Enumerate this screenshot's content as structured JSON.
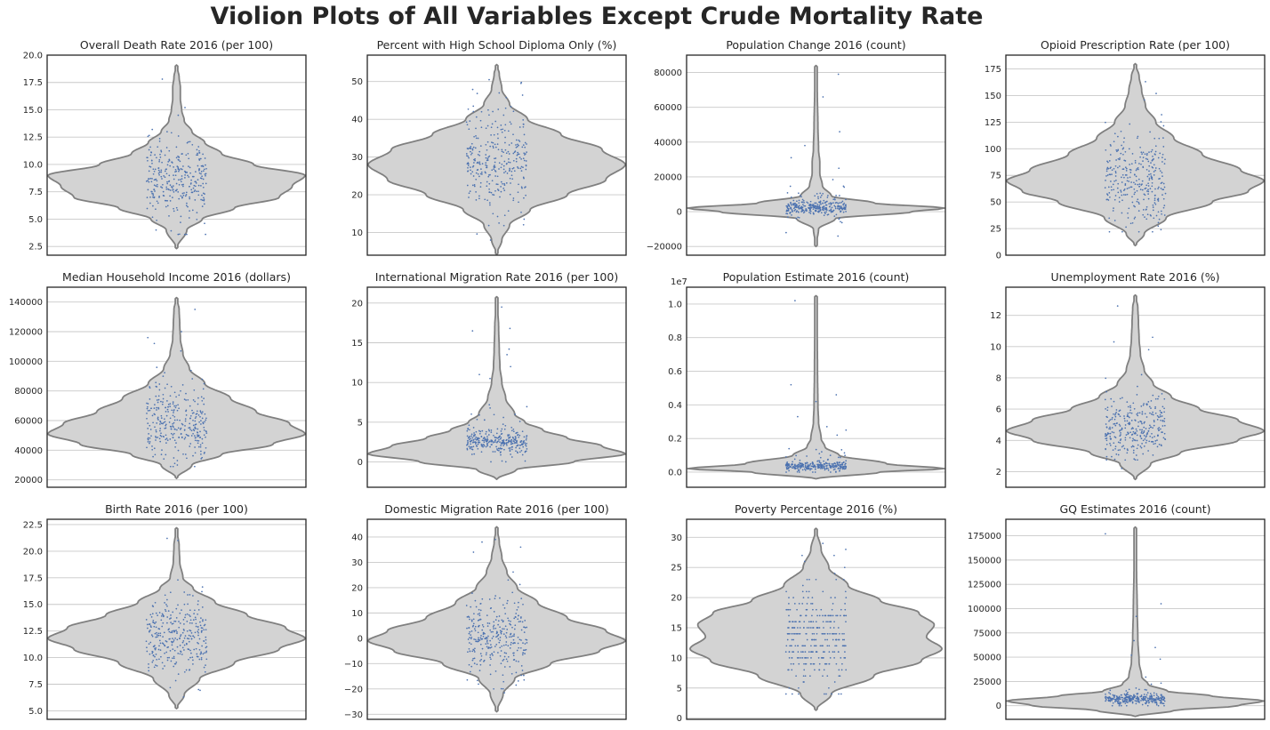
{
  "figure": {
    "suptitle": "Violion Plots of All Variables Except Crude Mortality Rate",
    "colors": {
      "violin_fill": "#d3d3d3",
      "violin_edge": "#808080",
      "points": "#4c72b0",
      "grid": "#c8c8c8",
      "frame": "#262626",
      "text": "#262626"
    }
  },
  "chart_data": [
    {
      "type": "violin",
      "title": "Overall Death Rate 2016 (per 100)",
      "ylim": [
        1.7,
        20.0
      ],
      "yticks": [
        2.5,
        5.0,
        7.5,
        10.0,
        12.5,
        15.0,
        17.5,
        20.0
      ],
      "yticklabels": [
        "2.5",
        "5.0",
        "7.5",
        "10.0",
        "12.5",
        "15.0",
        "17.5",
        "20.0"
      ],
      "violin_min": 2.3,
      "violin_max": 19.1,
      "density": [
        [
          2.3,
          0
        ],
        [
          4,
          0.08
        ],
        [
          5,
          0.2
        ],
        [
          6,
          0.45
        ],
        [
          7,
          0.8
        ],
        [
          8,
          0.9
        ],
        [
          9,
          1.0
        ],
        [
          10,
          0.6
        ],
        [
          11,
          0.35
        ],
        [
          12,
          0.22
        ],
        [
          13,
          0.12
        ],
        [
          14,
          0.06
        ],
        [
          15,
          0.04
        ],
        [
          16,
          0.03
        ],
        [
          17,
          0.03
        ],
        [
          18,
          0.02
        ],
        [
          19.1,
          0
        ]
      ],
      "points": {
        "n": 300,
        "center": 8.6,
        "spread": 1.9,
        "min": 3.6,
        "max": 17.8,
        "outliers": [
          17.8,
          15.2,
          14.5,
          13.0,
          3.6,
          4.0,
          4.7
        ]
      }
    },
    {
      "type": "violin",
      "title": "Percent with High School Diploma Only (%)",
      "ylim": [
        4,
        57
      ],
      "yticks": [
        10,
        20,
        30,
        40,
        50
      ],
      "yticklabels": [
        "10",
        "20",
        "30",
        "40",
        "50"
      ],
      "violin_min": 4.2,
      "violin_max": 54.5,
      "density": [
        [
          4.2,
          0
        ],
        [
          8,
          0.04
        ],
        [
          12,
          0.1
        ],
        [
          16,
          0.26
        ],
        [
          20,
          0.55
        ],
        [
          24,
          0.85
        ],
        [
          28,
          1.0
        ],
        [
          32,
          0.82
        ],
        [
          36,
          0.5
        ],
        [
          40,
          0.24
        ],
        [
          44,
          0.1
        ],
        [
          48,
          0.04
        ],
        [
          52,
          0.02
        ],
        [
          54.5,
          0
        ]
      ],
      "points": {
        "n": 300,
        "center": 28.5,
        "spread": 6.5,
        "min": 8.0,
        "max": 50.5,
        "outliers": [
          8.0,
          50.5,
          49.5,
          47.0,
          12.5
        ]
      }
    },
    {
      "type": "violin",
      "title": "Population Change 2016 (count)",
      "ylim": [
        -25000,
        90000
      ],
      "yticks": [
        -20000,
        0,
        20000,
        40000,
        60000,
        80000
      ],
      "yticklabels": [
        "−20000",
        "0",
        "20000",
        "40000",
        "60000",
        "80000"
      ],
      "violin_min": -20000,
      "violin_max": 84000,
      "density": [
        [
          -20000,
          0
        ],
        [
          -10000,
          0.02
        ],
        [
          -4000,
          0.15
        ],
        [
          0,
          0.75
        ],
        [
          2000,
          1.0
        ],
        [
          5000,
          0.45
        ],
        [
          9000,
          0.12
        ],
        [
          15000,
          0.05
        ],
        [
          22000,
          0.03
        ],
        [
          28000,
          0.03
        ],
        [
          36000,
          0.02
        ],
        [
          50000,
          0.015
        ],
        [
          70000,
          0.01
        ],
        [
          84000,
          0
        ]
      ],
      "points": {
        "n": 300,
        "center": 1500,
        "spread": 4500,
        "min": -16000,
        "max": 80000,
        "outliers": [
          79000,
          66000,
          46000,
          38000,
          31000,
          25000,
          -14000,
          -12000
        ]
      }
    },
    {
      "type": "violin",
      "title": "Opioid Prescription Rate (per 100)",
      "ylim": [
        0,
        188
      ],
      "yticks": [
        0,
        25,
        50,
        75,
        100,
        125,
        150,
        175
      ],
      "yticklabels": [
        "0",
        "25",
        "50",
        "75",
        "100",
        "125",
        "150",
        "175"
      ],
      "violin_min": 9,
      "violin_max": 180,
      "density": [
        [
          9,
          0
        ],
        [
          20,
          0.07
        ],
        [
          35,
          0.24
        ],
        [
          50,
          0.6
        ],
        [
          60,
          0.88
        ],
        [
          70,
          1.0
        ],
        [
          80,
          0.82
        ],
        [
          95,
          0.52
        ],
        [
          110,
          0.3
        ],
        [
          125,
          0.16
        ],
        [
          140,
          0.08
        ],
        [
          155,
          0.05
        ],
        [
          168,
          0.03
        ],
        [
          180,
          0
        ]
      ],
      "points": {
        "n": 300,
        "center": 72,
        "spread": 22,
        "min": 22,
        "max": 163,
        "outliers": [
          163,
          152,
          146,
          132,
          22,
          24
        ]
      }
    },
    {
      "type": "violin",
      "title": "Median Household Income 2016 (dollars)",
      "ylim": [
        15000,
        150000
      ],
      "yticks": [
        20000,
        40000,
        60000,
        80000,
        100000,
        120000,
        140000
      ],
      "yticklabels": [
        "20000",
        "40000",
        "60000",
        "80000",
        "100000",
        "120000",
        "140000"
      ],
      "violin_min": 21000,
      "violin_max": 143000,
      "density": [
        [
          21000,
          0
        ],
        [
          30000,
          0.12
        ],
        [
          37000,
          0.35
        ],
        [
          44000,
          0.75
        ],
        [
          51000,
          1.0
        ],
        [
          58000,
          0.88
        ],
        [
          66000,
          0.62
        ],
        [
          75000,
          0.42
        ],
        [
          85000,
          0.22
        ],
        [
          95000,
          0.1
        ],
        [
          105000,
          0.05
        ],
        [
          115000,
          0.03
        ],
        [
          125000,
          0.025
        ],
        [
          135000,
          0.02
        ],
        [
          143000,
          0
        ]
      ],
      "points": {
        "n": 300,
        "center": 58000,
        "spread": 13000,
        "min": 29000,
        "max": 136000,
        "outliers": [
          135000,
          120000,
          116000,
          112000,
          107000,
          30000,
          33000
        ]
      }
    },
    {
      "type": "violin",
      "title": "International Migration Rate 2016 (per 100)",
      "ylim": [
        -3.2,
        22
      ],
      "yticks": [
        0,
        5,
        10,
        15,
        20
      ],
      "yticklabels": [
        "0",
        "5",
        "10",
        "15",
        "20"
      ],
      "violin_min": -2.2,
      "violin_max": 20.8,
      "density": [
        [
          -2.2,
          0
        ],
        [
          -1,
          0.15
        ],
        [
          0,
          0.6
        ],
        [
          1,
          1.0
        ],
        [
          2,
          0.82
        ],
        [
          3,
          0.55
        ],
        [
          4,
          0.36
        ],
        [
          5,
          0.22
        ],
        [
          6,
          0.14
        ],
        [
          8,
          0.07
        ],
        [
          10,
          0.04
        ],
        [
          12,
          0.025
        ],
        [
          14,
          0.02
        ],
        [
          17,
          0.015
        ],
        [
          20.8,
          0
        ]
      ],
      "points": {
        "n": 300,
        "center": 2.2,
        "spread": 1.8,
        "min": 0.0,
        "max": 19.5,
        "outliers": [
          19.5,
          16.8,
          16.5,
          14.2,
          13.5,
          12.0,
          11.0,
          10.5
        ]
      }
    },
    {
      "type": "violin",
      "title": "Population Estimate 2016 (count)",
      "ylim": [
        -0.09,
        1.1
      ],
      "yticks": [
        0.0,
        0.2,
        0.4,
        0.6,
        0.8,
        1.0
      ],
      "yticklabels": [
        "0.0",
        "0.2",
        "0.4",
        "0.6",
        "0.8",
        "1.0"
      ],
      "yoffset_label": "1e7",
      "violin_min": -0.04,
      "violin_max": 1.05,
      "density": [
        [
          -0.04,
          0
        ],
        [
          0.0,
          0.5
        ],
        [
          0.02,
          1.0
        ],
        [
          0.05,
          0.55
        ],
        [
          0.1,
          0.18
        ],
        [
          0.15,
          0.07
        ],
        [
          0.2,
          0.04
        ],
        [
          0.3,
          0.02
        ],
        [
          0.4,
          0.015
        ],
        [
          0.6,
          0.012
        ],
        [
          0.8,
          0.01
        ],
        [
          1.05,
          0
        ]
      ],
      "points": {
        "n": 300,
        "center": 0.03,
        "spread": 0.035,
        "min": 0.0,
        "max": 1.02,
        "outliers": [
          1.02,
          0.52,
          0.46,
          0.42,
          0.33,
          0.27,
          0.25,
          0.22
        ]
      }
    },
    {
      "type": "violin",
      "title": "Unemployment Rate 2016 (%)",
      "ylim": [
        1.0,
        13.8
      ],
      "yticks": [
        2,
        4,
        6,
        8,
        10,
        12
      ],
      "yticklabels": [
        "2",
        "4",
        "6",
        "8",
        "10",
        "12"
      ],
      "violin_min": 1.5,
      "violin_max": 13.3,
      "density": [
        [
          1.5,
          0
        ],
        [
          2.5,
          0.12
        ],
        [
          3.2,
          0.35
        ],
        [
          4,
          0.8
        ],
        [
          4.6,
          1.0
        ],
        [
          5.3,
          0.8
        ],
        [
          6,
          0.5
        ],
        [
          6.8,
          0.28
        ],
        [
          7.6,
          0.14
        ],
        [
          8.5,
          0.07
        ],
        [
          9.5,
          0.04
        ],
        [
          10.5,
          0.03
        ],
        [
          11.5,
          0.025
        ],
        [
          12.5,
          0.02
        ],
        [
          13.3,
          0
        ]
      ],
      "points": {
        "n": 300,
        "center": 4.8,
        "spread": 1.0,
        "min": 2.0,
        "max": 12.6,
        "outliers": [
          12.6,
          10.6,
          10.3,
          9.8,
          8.2,
          2.2
        ]
      }
    },
    {
      "type": "violin",
      "title": "Birth Rate 2016 (per 100)",
      "ylim": [
        4.2,
        23.0
      ],
      "yticks": [
        5.0,
        7.5,
        10.0,
        12.5,
        15.0,
        17.5,
        20.0,
        22.5
      ],
      "yticklabels": [
        "5.0",
        "7.5",
        "10.0",
        "12.5",
        "15.0",
        "17.5",
        "20.0",
        "22.5"
      ],
      "violin_min": 5.2,
      "violin_max": 22.2,
      "density": [
        [
          5.2,
          0
        ],
        [
          6.5,
          0.06
        ],
        [
          8,
          0.18
        ],
        [
          9.5,
          0.45
        ],
        [
          10.8,
          0.8
        ],
        [
          11.8,
          1.0
        ],
        [
          12.8,
          0.85
        ],
        [
          14,
          0.55
        ],
        [
          15.2,
          0.3
        ],
        [
          16.5,
          0.13
        ],
        [
          17.5,
          0.05
        ],
        [
          19,
          0.025
        ],
        [
          20.5,
          0.02
        ],
        [
          22.2,
          0
        ]
      ],
      "points": {
        "n": 300,
        "center": 11.8,
        "spread": 1.8,
        "min": 6.3,
        "max": 21.2,
        "outliers": [
          21.2,
          21.0,
          17.3,
          16.2,
          6.3,
          7.0
        ]
      }
    },
    {
      "type": "violin",
      "title": "Domestic Migration Rate 2016 (per 100)",
      "ylim": [
        -32,
        47
      ],
      "yticks": [
        -30,
        -20,
        -10,
        0,
        10,
        20,
        30,
        40
      ],
      "yticklabels": [
        "−30",
        "−20",
        "−10",
        "0",
        "10",
        "20",
        "30",
        "40"
      ],
      "violin_min": -29,
      "violin_max": 44,
      "density": [
        [
          -29,
          0
        ],
        [
          -22,
          0.05
        ],
        [
          -16,
          0.14
        ],
        [
          -10,
          0.42
        ],
        [
          -5,
          0.8
        ],
        [
          -1,
          1.0
        ],
        [
          3,
          0.85
        ],
        [
          8,
          0.55
        ],
        [
          14,
          0.32
        ],
        [
          20,
          0.16
        ],
        [
          26,
          0.08
        ],
        [
          32,
          0.04
        ],
        [
          38,
          0.02
        ],
        [
          44,
          0
        ]
      ],
      "points": {
        "n": 300,
        "center": 0.5,
        "spread": 8.5,
        "min": -21.5,
        "max": 39,
        "outliers": [
          39,
          38,
          36,
          34,
          -21.5,
          -20
        ]
      }
    },
    {
      "type": "violin",
      "title": "Poverty Percentage 2016 (%)",
      "ylim": [
        -0.2,
        33
      ],
      "yticks": [
        0,
        5,
        10,
        15,
        20,
        25,
        30
      ],
      "yticklabels": [
        "0",
        "5",
        "10",
        "15",
        "20",
        "25",
        "30"
      ],
      "violin_min": 1.3,
      "violin_max": 31.5,
      "density": [
        [
          1.3,
          0
        ],
        [
          4,
          0.12
        ],
        [
          7,
          0.45
        ],
        [
          9.5,
          0.82
        ],
        [
          11.5,
          0.98
        ],
        [
          13.5,
          0.86
        ],
        [
          15.5,
          0.92
        ],
        [
          17.5,
          0.8
        ],
        [
          19.5,
          0.5
        ],
        [
          22,
          0.25
        ],
        [
          25,
          0.1
        ],
        [
          28,
          0.04
        ],
        [
          31.5,
          0
        ]
      ],
      "points": {
        "n": 300,
        "center": 13.5,
        "spread": 4.0,
        "min": 4,
        "max": 29,
        "discrete": true,
        "outliers": [
          29,
          28,
          27,
          26,
          4
        ]
      }
    },
    {
      "type": "violin",
      "title": "GQ Estimates 2016 (count)",
      "ylim": [
        -14000,
        192000
      ],
      "yticks": [
        0,
        25000,
        50000,
        75000,
        100000,
        125000,
        150000,
        175000
      ],
      "yticklabels": [
        "0",
        "25000",
        "50000",
        "75000",
        "100000",
        "125000",
        "150000",
        "175000"
      ],
      "violin_min": -11000,
      "violin_max": 184000,
      "density": [
        [
          -11000,
          0
        ],
        [
          -5000,
          0.3
        ],
        [
          0,
          0.8
        ],
        [
          5000,
          1.0
        ],
        [
          10000,
          0.6
        ],
        [
          15000,
          0.25
        ],
        [
          22000,
          0.1
        ],
        [
          30000,
          0.05
        ],
        [
          45000,
          0.03
        ],
        [
          70000,
          0.02
        ],
        [
          100000,
          0.015
        ],
        [
          140000,
          0.01
        ],
        [
          184000,
          0
        ]
      ],
      "points": {
        "n": 300,
        "center": 6000,
        "spread": 6500,
        "min": 0,
        "max": 177000,
        "outliers": [
          177000,
          105000,
          92000,
          67000,
          60000,
          52000,
          48000
        ]
      }
    }
  ]
}
